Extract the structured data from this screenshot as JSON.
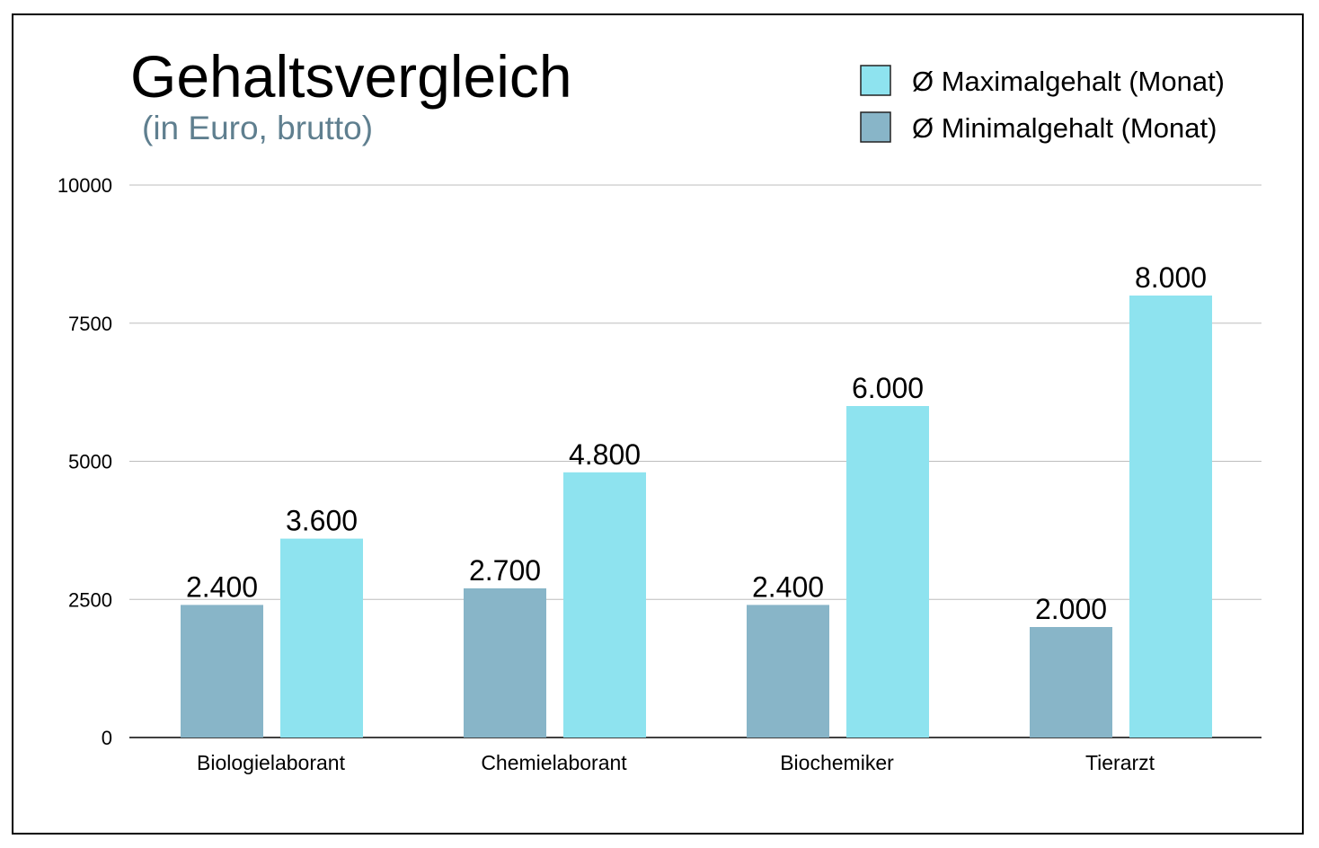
{
  "chart_data": {
    "type": "bar",
    "title": "Gehaltsvergleich",
    "subtitle": "(in Euro, brutto)",
    "categories": [
      "Biologielaborant",
      "Chemielaborant",
      "Biochemiker",
      "Tierarzt"
    ],
    "series": [
      {
        "name": "Ø Minimalgehalt (Monat)",
        "values": [
          2400,
          2700,
          2400,
          2000
        ],
        "labels": [
          "2.400",
          "2.700",
          "2.400",
          "2.000"
        ],
        "color": "#88B5C8"
      },
      {
        "name": "Ø Maximalgehalt (Monat)",
        "values": [
          3600,
          4800,
          6000,
          8000
        ],
        "labels": [
          "3.600",
          "4.800",
          "6.000",
          "8.000"
        ],
        "color": "#8EE3EF"
      }
    ],
    "legend_order": [
      1,
      0
    ],
    "legend_position": "top-right",
    "yticks": [
      "0",
      "2500",
      "5000",
      "7500",
      "10000"
    ],
    "ylim": [
      0,
      10000
    ],
    "grid": true,
    "xlabel": "",
    "ylabel": ""
  }
}
